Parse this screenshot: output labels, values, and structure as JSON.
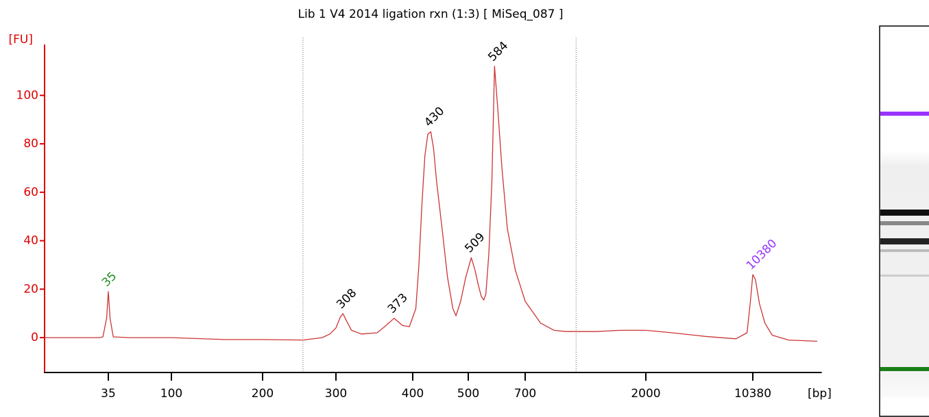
{
  "chart_data": {
    "type": "line",
    "title": "Lib 1 V4 2014 ligation rxn (1:3)  [ MiSeq_087 ]",
    "y_label": "[FU]",
    "x_label": "[bp]",
    "x_scale": "log",
    "axis_color": "#dd0000",
    "xlim": [
      12,
      30000
    ],
    "ylim": [
      -14.4,
      121
    ],
    "xticks": [
      35,
      100,
      200,
      300,
      400,
      500,
      700,
      2000,
      10380
    ],
    "yticks": [
      0,
      20,
      40,
      60,
      80,
      100
    ],
    "region": [
      250,
      1090
    ],
    "series": [
      {
        "color": "#cc3333",
        "x": [
          12,
          20,
          30,
          32,
          34,
          35,
          36,
          38,
          50,
          80,
          100,
          150,
          200,
          250,
          278,
          290,
          300,
          305,
          308,
          312,
          318,
          330,
          350,
          360,
          373,
          385,
          395,
          405,
          410,
          415,
          420,
          425,
          430,
          435,
          440,
          450,
          460,
          470,
          476,
          485,
          495,
          509,
          520,
          530,
          540,
          548,
          555,
          565,
          575,
          584,
          595,
          610,
          630,
          660,
          700,
          800,
          900,
          1000,
          1300,
          1600,
          2000,
          3000,
          5000,
          8000,
          9500,
          10000,
          10380,
          10800,
          11500,
          12500,
          14000,
          18000,
          28000
        ],
        "values": [
          0,
          0,
          0,
          0.3,
          8,
          19,
          8,
          0.3,
          0,
          0,
          0,
          -0.8,
          -0.8,
          -1,
          0,
          1.5,
          4,
          8.5,
          9.9,
          7,
          3,
          1.5,
          2,
          4.5,
          8,
          5,
          4.5,
          12,
          30,
          55,
          75,
          84,
          85,
          78,
          65,
          45,
          25,
          12,
          9,
          15,
          25,
          33,
          28,
          22,
          17,
          15.5,
          18,
          35,
          65,
          112,
          95,
          70,
          45,
          28,
          15,
          6,
          3,
          2.5,
          2.5,
          3,
          3,
          2,
          0.5,
          -0.5,
          2,
          15,
          26,
          24,
          14,
          6,
          1,
          -1,
          -1.5
        ]
      }
    ],
    "peaks": {
      "x": [
        35,
        308,
        373,
        430,
        509,
        584,
        10380
      ],
      "values": [
        19,
        9.9,
        8,
        85,
        33,
        112,
        26
      ],
      "colors": [
        "#228b22",
        "#000000",
        "#000000",
        "#000000",
        "#000000",
        "#000000",
        "#9933ff"
      ]
    }
  }
}
